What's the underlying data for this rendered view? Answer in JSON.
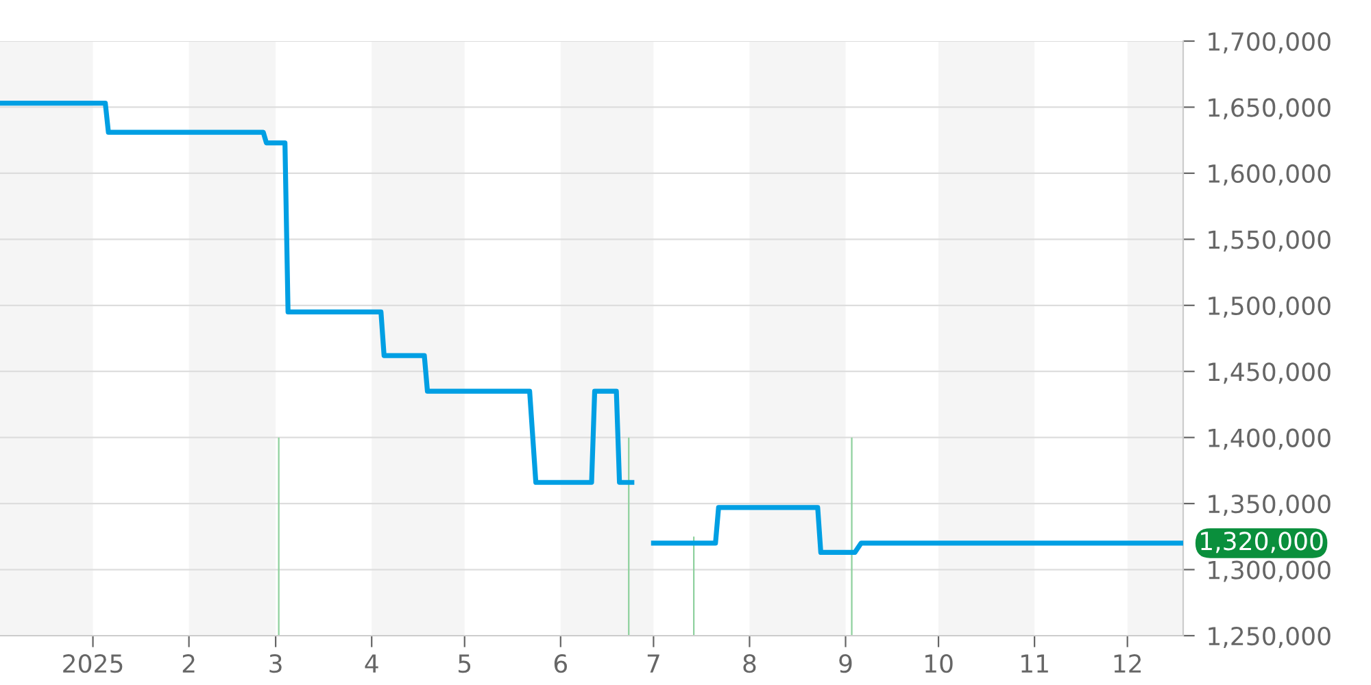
{
  "chart_data": {
    "type": "line",
    "series": [
      {
        "color": "#009fe3",
        "x": [
          "2024-12-02",
          "2025-01-05",
          "2025-01-06",
          "2025-02-25",
          "2025-02-26",
          "2025-03-04",
          "2025-03-05",
          "2025-04-04",
          "2025-04-05",
          "2025-04-18",
          "2025-04-19",
          "2025-05-22",
          "2025-05-24",
          "2025-06-11",
          "2025-06-12",
          "2025-06-19",
          "2025-06-20",
          "2025-06-24",
          "2025-06-28",
          "2025-07-01",
          "2025-07-21",
          "2025-07-22",
          "2025-08-23",
          "2025-08-24",
          "2025-09-04",
          "2025-09-06",
          "2025-12-19"
        ],
        "values": [
          1653000,
          1653000,
          1631000,
          1631000,
          1623000,
          1623000,
          1495000,
          1495000,
          1462000,
          1462000,
          1435000,
          1435000,
          1366000,
          1366000,
          1435000,
          1435000,
          1366000,
          1366000,
          null,
          1320000,
          1320000,
          1347000,
          1347000,
          1313000,
          1313000,
          1320000,
          1320000
        ]
      },
      {
        "type": "bar",
        "color": "#8fd19e",
        "x": [
          "2025-03-02",
          "2025-06-23",
          "2025-07-14",
          "2025-09-03"
        ],
        "values": [
          1400000,
          1400000,
          1325000,
          1400000
        ]
      }
    ],
    "xlim": [
      "2024-12-02",
      "2025-12-19"
    ],
    "xticks": [
      {
        "value": "2025-01-01",
        "label": "2025"
      },
      {
        "value": "2025-02-01",
        "label": "2"
      },
      {
        "value": "2025-03-01",
        "label": "3"
      },
      {
        "value": "2025-04-01",
        "label": "4"
      },
      {
        "value": "2025-05-01",
        "label": "5"
      },
      {
        "value": "2025-06-01",
        "label": "6"
      },
      {
        "value": "2025-07-01",
        "label": "7"
      },
      {
        "value": "2025-08-01",
        "label": "8"
      },
      {
        "value": "2025-09-01",
        "label": "9"
      },
      {
        "value": "2025-10-01",
        "label": "10"
      },
      {
        "value": "2025-11-01",
        "label": "11"
      },
      {
        "value": "2025-12-01",
        "label": "12"
      }
    ],
    "ylim": [
      1250000,
      1700000
    ],
    "yticks": [
      {
        "value": 1250000,
        "label": "1,250,000"
      },
      {
        "value": 1300000,
        "label": "1,300,000"
      },
      {
        "value": 1350000,
        "label": "1,350,000"
      },
      {
        "value": 1400000,
        "label": "1,400,000"
      },
      {
        "value": 1450000,
        "label": "1,450,000"
      },
      {
        "value": 1500000,
        "label": "1,500,000"
      },
      {
        "value": 1550000,
        "label": "1,550,000"
      },
      {
        "value": 1600000,
        "label": "1,600,000"
      },
      {
        "value": 1650000,
        "label": "1,650,000"
      },
      {
        "value": 1700000,
        "label": "1,700,000"
      }
    ],
    "bands": [
      {
        "axis": "x",
        "from": "2024-12-02",
        "to": "2025-01-01",
        "color": "#f5f5f5"
      },
      {
        "axis": "x",
        "from": "2025-02-01",
        "to": "2025-03-01",
        "color": "#f5f5f5"
      },
      {
        "axis": "x",
        "from": "2025-04-01",
        "to": "2025-05-01",
        "color": "#f5f5f5"
      },
      {
        "axis": "x",
        "from": "2025-06-01",
        "to": "2025-07-01",
        "color": "#f5f5f5"
      },
      {
        "axis": "x",
        "from": "2025-08-01",
        "to": "2025-09-01",
        "color": "#f5f5f5"
      },
      {
        "axis": "x",
        "from": "2025-10-01",
        "to": "2025-11-01",
        "color": "#f5f5f5"
      },
      {
        "axis": "x",
        "from": "2025-12-01",
        "to": "2025-12-19",
        "color": "#f5f5f5"
      }
    ],
    "annotations": [
      {
        "text": "1,320,000",
        "x": "2025-12-19",
        "y": 1320000
      }
    ],
    "grid": "y",
    "legend": false,
    "marker": "none",
    "line_style": "solid"
  }
}
